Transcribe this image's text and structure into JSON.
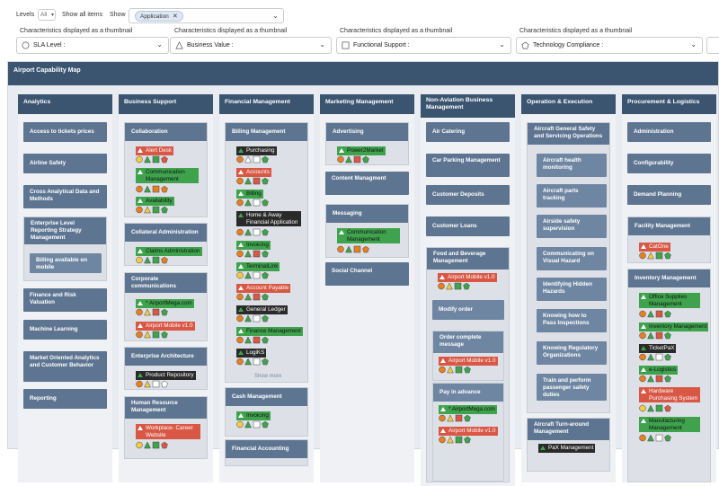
{
  "toolbar": {
    "levels_label": "Levels",
    "levels_value": "All",
    "show_all_label": "Show all items",
    "show_label": "Show",
    "app_chip": "Application"
  },
  "characteristics": [
    {
      "label": "Characteristics displayed as a thumbnail",
      "value": "SLA Level :",
      "icon": "circle-icon"
    },
    {
      "label": "Characteristics displayed as a thumbnail",
      "value": "Business Value :",
      "icon": "triangle-icon"
    },
    {
      "label": "Characteristics displayed as a thumbnail",
      "value": "Functional Support :",
      "icon": "square-icon"
    },
    {
      "label": "Characteristics displayed as a thumbnail",
      "value": "Technology Compliance :",
      "icon": "pentagon-icon"
    }
  ],
  "map_title": "Airport Capability Map",
  "columns": [
    {
      "title": "Analytics"
    },
    {
      "title": "Business Support"
    },
    {
      "title": "Financial Management"
    },
    {
      "title": "Marketing Management"
    },
    {
      "title": "Non-Aviation Business Management"
    },
    {
      "title": "Operation & Execution"
    },
    {
      "title": "Procurement & Logistics"
    }
  ],
  "analytics": [
    "Access to tickets prices",
    "Airline Safety",
    "Cross Analytical Data and Methods",
    "Enterprise Level Reporting Strategy Management",
    "Billing available on mobile",
    "Finance and Risk Valuation",
    "Machine Learning",
    "Market Oriented Analytics and Customer Behavior",
    "Reporting"
  ],
  "business_support": {
    "collab": "Collaboration",
    "collab_apps": [
      "Alert Desk",
      "Communication Management",
      "Availability"
    ],
    "collat": "Collateral Administration",
    "collat_apps": [
      "Claims Administration"
    ],
    "corp": "Corporate communications",
    "corp_apps": [
      "* AirportMega.com",
      "Airport Mobile v1.0"
    ],
    "ent_arch": "Enterprise Architecture",
    "ent_apps": [
      "Product Repository"
    ],
    "hr": "Human Resource Management",
    "hr_apps": [
      "Workplace- Career Website"
    ]
  },
  "financial": {
    "billing": "Billing Management",
    "billing_apps": [
      "Purchasing",
      "Accounts",
      "Billing",
      "Home & Away Financial Application",
      "Invoicing",
      "TerminalLink",
      "Account Payable",
      "General Ledger",
      "Finance Management",
      "LogiKS"
    ],
    "show_more": "Show more",
    "cash": "Cash Management",
    "cash_apps": [
      "Invoicing"
    ],
    "fin_acc": "Financial Accounting"
  },
  "marketing": {
    "adv": "Advertising",
    "adv_apps": [
      "Power2Market"
    ],
    "content": "Content Managment",
    "msg": "Messaging",
    "msg_apps": [
      "Communication Management"
    ],
    "social": "Social Channel"
  },
  "non_aviation": {
    "air_catering": "Air Catering",
    "car_parking": "Car Parking Management",
    "cust_dep": "Customer Deposits",
    "cust_loans": "Customer Loans",
    "food": "Food and Beverage Management",
    "food_apps": [
      "Airport Mobile v1.0"
    ],
    "modify": "Modify order",
    "order_complete": "Order complete message",
    "order_apps": [
      "Airport Mobile v1.0"
    ],
    "pay": "Pay in advance",
    "pay_apps": [
      "* AirportMega.com",
      "Airport Mobile v1.0"
    ]
  },
  "operation": {
    "safety": "Aircraft General Safety and Servicing Operations",
    "sub": [
      "Aircraft health monitoring",
      "Aircraft parts tracking",
      "Airside safety supervision",
      "Communicating on Visual Hazard",
      "Identifying Hidden Hazards",
      "Knowing how to Pass Inspections",
      "Knowing Regulatory Organizations",
      "Train and perform passenger safety duties"
    ],
    "turn": "Aircraft Turn-around Management",
    "turn_apps": [
      "PaX Management"
    ]
  },
  "procurement": {
    "admin": "Administration",
    "config": "Configurability",
    "demand": "Demand Planning",
    "facility": "Facility Management",
    "facility_apps": [
      "CatOne"
    ],
    "inventory": "Inventory Management",
    "inv_apps": [
      "Office Supplies Management",
      "Inventory Management",
      "TicketPaX",
      "e-Logistics",
      "Hardware Purchasing System",
      "Manufacturing Management"
    ]
  },
  "colors": {
    "header": "#3b5470",
    "box": "#5e7591",
    "green": "#3fa34d",
    "red": "#d95745",
    "dark": "#2a2a2a",
    "yellow": "#f2c94c",
    "orange": "#e67e22"
  }
}
